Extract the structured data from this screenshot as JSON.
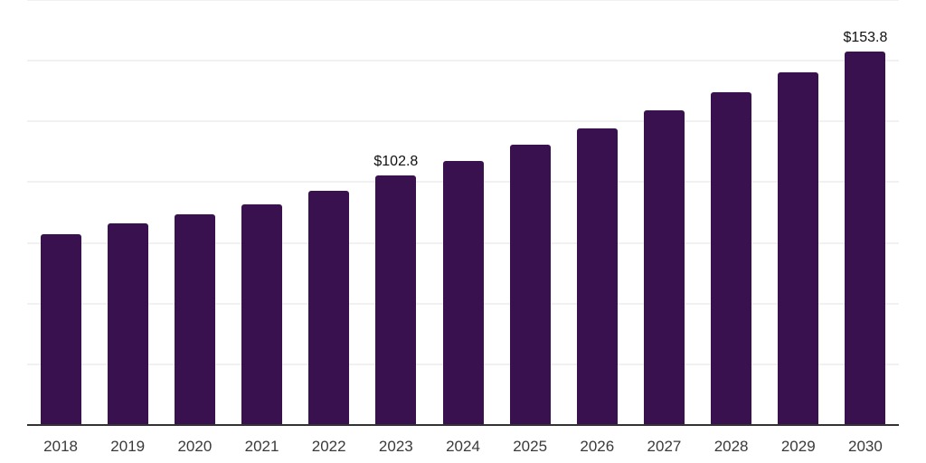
{
  "colors": {
    "background": "#ffffff",
    "bar": "#38114e",
    "grid": "#f1f1f1",
    "axis": "#333333",
    "tick_label": "#3a3a3a",
    "data_label": "#111111"
  },
  "chart_data": {
    "type": "bar",
    "title": "",
    "xlabel": "",
    "ylabel": "",
    "categories": [
      "2018",
      "2019",
      "2020",
      "2021",
      "2022",
      "2023",
      "2024",
      "2025",
      "2026",
      "2027",
      "2028",
      "2029",
      "2030"
    ],
    "values": [
      78.6,
      83.0,
      86.9,
      90.9,
      96.4,
      102.8,
      108.9,
      115.3,
      122.2,
      129.4,
      137.1,
      145.2,
      153.8
    ],
    "data_labels": [
      {
        "category": "2023",
        "text": "$102.8"
      },
      {
        "category": "2030",
        "text": "$153.8"
      }
    ],
    "ylim": [
      0,
      175
    ],
    "gridline_step": 25,
    "grid": true,
    "legend_position": "none",
    "x_axis_line": true,
    "y_axis_labels": false
  }
}
